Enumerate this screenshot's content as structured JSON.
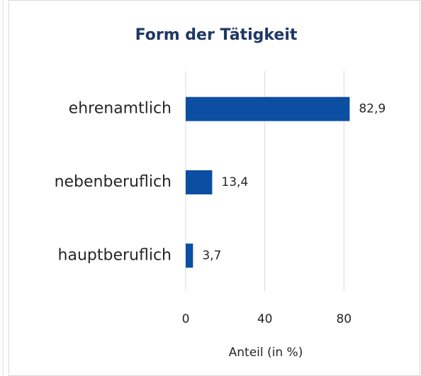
{
  "chart_data": {
    "type": "bar",
    "orientation": "horizontal",
    "title": "Form der Tätigkeit",
    "categories": [
      "ehrenamtlich",
      "nebenberuflich",
      "hauptberuflich"
    ],
    "values": [
      82.9,
      13.4,
      3.7
    ],
    "value_labels": [
      "82,9",
      "13,4",
      "3,7"
    ],
    "color": "#0b4ea2",
    "x_label": "Anteil (in %)",
    "xlim": [
      0,
      110
    ],
    "xticks": [
      0,
      40,
      80
    ],
    "grid": true
  }
}
